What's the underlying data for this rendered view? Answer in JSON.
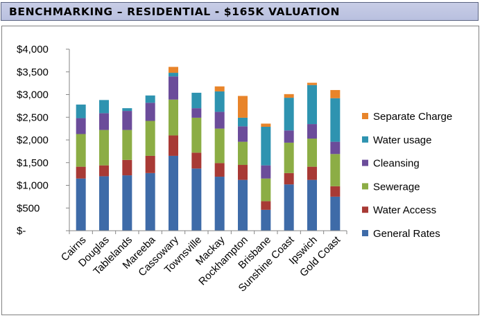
{
  "header": {
    "title": "BENCHMARKING – RESIDENTIAL - $165K VALUATION"
  },
  "chart_data": {
    "type": "bar",
    "stacked": true,
    "title": "BENCHMARKING – RESIDENTIAL - $165K VALUATION",
    "xlabel": "",
    "ylabel": "",
    "ylim": [
      0,
      4000
    ],
    "yticks": [
      0,
      500,
      1000,
      1500,
      2000,
      2500,
      3000,
      3500,
      4000
    ],
    "ytick_labels": [
      "$-",
      "$500",
      "$1,000",
      "$1,500",
      "$2,000",
      "$2,500",
      "$3,000",
      "$3,500",
      "$4,000"
    ],
    "grid": false,
    "legend_position": "right",
    "categories": [
      "Cairns",
      "Douglas",
      "Tablelands",
      "Mareeba",
      "Cassowary",
      "Townsville",
      "Mackay",
      "Rockhampton",
      "Brisbane",
      "Sunshine Coast",
      "Ipswich",
      "Gold Coast"
    ],
    "series": [
      {
        "name": "General Rates",
        "color": "#3E6BA8",
        "values": [
          1150,
          1200,
          1220,
          1270,
          1650,
          1370,
          1190,
          1120,
          460,
          1020,
          1120,
          750
        ]
      },
      {
        "name": "Water Access",
        "color": "#A83A35",
        "values": [
          260,
          240,
          340,
          380,
          450,
          350,
          300,
          330,
          190,
          250,
          290,
          230
        ]
      },
      {
        "name": "Sewerage",
        "color": "#8CAD45",
        "values": [
          720,
          780,
          660,
          770,
          790,
          770,
          760,
          510,
          500,
          670,
          620,
          710
        ]
      },
      {
        "name": "Cleansing",
        "color": "#6B4C9A",
        "values": [
          350,
          370,
          420,
          400,
          510,
          210,
          370,
          340,
          290,
          270,
          320,
          270
        ]
      },
      {
        "name": "Water usage",
        "color": "#2E93B0",
        "values": [
          300,
          290,
          60,
          160,
          80,
          340,
          450,
          190,
          850,
          720,
          860,
          960
        ]
      },
      {
        "name": "Separate Charge",
        "color": "#E8842A",
        "values": [
          0,
          0,
          0,
          0,
          130,
          0,
          110,
          480,
          70,
          80,
          50,
          180
        ]
      }
    ]
  }
}
